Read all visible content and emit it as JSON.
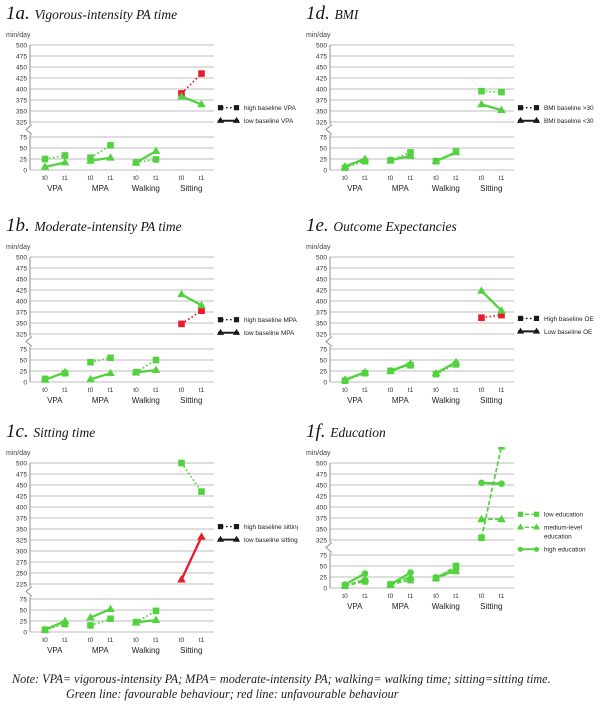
{
  "figure": {
    "note": {
      "line1": "Note:  VPA= vigorous-intensity PA; MPA= moderate-intensity PA; walking= walking time; sitting=sitting time.",
      "line2": "Green line: favourable behaviour; red line: unfavourable behaviour"
    }
  },
  "colors": {
    "green": "#52d23e",
    "red": "#e81c2c",
    "black": "#1a1a1a",
    "grid": "#bcbcbc",
    "axis": "#8e8e8e",
    "text": "#333333"
  },
  "chart_data": [
    {
      "id": "1a",
      "label": "1a.",
      "title": "Vigorous-intensity PA time",
      "type": "line",
      "ylabel": "min/day",
      "axis_break": true,
      "upper_ticks": [
        500,
        475,
        450,
        425,
        400,
        375,
        350,
        325
      ],
      "lower_ticks": [
        75,
        50,
        25,
        0
      ],
      "groups": [
        "VPA",
        "MPA",
        "Walking",
        "Sitting"
      ],
      "x_ticks": [
        "t0",
        "t1"
      ],
      "legend_color": "black",
      "legend_anchor": 352,
      "series": [
        {
          "name": "high baseline VPA",
          "marker": "square",
          "line": "dotted",
          "values": [
            [
              25,
              33
            ],
            [
              28,
              56
            ],
            [
              17,
              24
            ],
            [
              390,
              435
            ]
          ],
          "segment_colors": [
            "green",
            "green",
            "green",
            "red"
          ]
        },
        {
          "name": "low baseline VPA",
          "marker": "triangle",
          "line": "solid",
          "values": [
            [
              7,
              17
            ],
            [
              21,
              28
            ],
            [
              17,
              43
            ],
            [
              383,
              365
            ]
          ],
          "segment_colors": [
            "green",
            "green",
            "green",
            "green"
          ]
        }
      ]
    },
    {
      "id": "1b",
      "label": "1b.",
      "title": "Moderate-intensity PA time",
      "type": "line",
      "ylabel": "min/day",
      "axis_break": true,
      "upper_ticks": [
        500,
        475,
        450,
        425,
        400,
        375,
        350,
        325
      ],
      "lower_ticks": [
        75,
        50,
        25,
        0
      ],
      "groups": [
        "VPA",
        "MPA",
        "Walking",
        "Sitting"
      ],
      "x_ticks": [
        "t0",
        "t1"
      ],
      "legend_color": "black",
      "legend_anchor": 352,
      "series": [
        {
          "name": "high baseline MPA",
          "marker": "square",
          "line": "dotted",
          "values": [
            [
              7,
              20
            ],
            [
              45,
              55
            ],
            [
              22,
              50
            ],
            [
              348,
              378
            ]
          ],
          "segment_colors": [
            "green",
            "green",
            "green",
            "red"
          ]
        },
        {
          "name": "low baseline MPA",
          "marker": "triangle",
          "line": "solid",
          "values": [
            [
              5,
              22
            ],
            [
              6,
              20
            ],
            [
              22,
              27
            ],
            [
              415,
              390
            ]
          ],
          "segment_colors": [
            "green",
            "green",
            "green",
            "green"
          ]
        }
      ]
    },
    {
      "id": "1c",
      "label": "1c.",
      "title": "Sitting time",
      "type": "line",
      "ylabel": "min/day",
      "axis_break": true,
      "upper_ticks": [
        500,
        475,
        450,
        425,
        400,
        375,
        350,
        325,
        300,
        275,
        250,
        225
      ],
      "lower_ticks": [
        75,
        50,
        25,
        0
      ],
      "groups": [
        "VPA",
        "MPA",
        "Walking",
        "Sitting"
      ],
      "x_ticks": [
        "t0",
        "t1"
      ],
      "legend_color": "black",
      "legend_anchor": 350,
      "series": [
        {
          "name": "high baseline sitting",
          "marker": "square",
          "line": "dotted",
          "values": [
            [
              5,
              18
            ],
            [
              15,
              30
            ],
            [
              22,
              48
            ],
            [
              500,
              435
            ]
          ],
          "segment_colors": [
            "green",
            "green",
            "green",
            "green"
          ]
        },
        {
          "name": "low baseline sitting",
          "marker": "triangle",
          "line": "solid",
          "values": [
            [
              5,
              25
            ],
            [
              33,
              52
            ],
            [
              22,
              27
            ],
            [
              235,
              332
            ]
          ],
          "segment_colors": [
            "green",
            "green",
            "green",
            "red"
          ]
        }
      ]
    },
    {
      "id": "1d",
      "label": "1d.",
      "title": "BMI",
      "type": "line",
      "ylabel": "min/day",
      "axis_break": true,
      "upper_ticks": [
        500,
        475,
        450,
        425,
        400,
        375,
        350,
        325
      ],
      "lower_ticks": [
        75,
        50,
        25,
        0
      ],
      "groups": [
        "VPA",
        "MPA",
        "Walking",
        "Sitting"
      ],
      "x_ticks": [
        "t0",
        "t1"
      ],
      "legend_color": "black",
      "legend_anchor": 352,
      "series": [
        {
          "name": "BMI baseline >30",
          "marker": "square",
          "line": "dotted",
          "values": [
            [
              5,
              20
            ],
            [
              22,
              40
            ],
            [
              20,
              42
            ],
            [
              395,
              393
            ]
          ],
          "segment_colors": [
            "green",
            "green",
            "green",
            "green"
          ]
        },
        {
          "name": "BMI baseline <30",
          "marker": "triangle",
          "line": "solid",
          "values": [
            [
              8,
              25
            ],
            [
              22,
              32
            ],
            [
              20,
              40
            ],
            [
              365,
              352
            ]
          ],
          "segment_colors": [
            "green",
            "green",
            "green",
            "green"
          ]
        }
      ]
    },
    {
      "id": "1e",
      "label": "1e.",
      "title": "Outcome Expectancies",
      "type": "line",
      "ylabel": "min/day",
      "axis_break": true,
      "upper_ticks": [
        500,
        475,
        450,
        425,
        400,
        375,
        350,
        325
      ],
      "lower_ticks": [
        75,
        50,
        25,
        0
      ],
      "groups": [
        "VPA",
        "MPA",
        "Walking",
        "Sitting"
      ],
      "x_ticks": [
        "t0",
        "t1"
      ],
      "legend_color": "black",
      "legend_anchor": 355,
      "series": [
        {
          "name": "High baseline OE",
          "marker": "square",
          "line": "dotted",
          "values": [
            [
              3,
              20
            ],
            [
              25,
              38
            ],
            [
              18,
              40
            ],
            [
              362,
              368
            ]
          ],
          "segment_colors": [
            "green",
            "green",
            "green",
            "red"
          ]
        },
        {
          "name": "Low baseline OE",
          "marker": "triangle",
          "line": "solid",
          "values": [
            [
              5,
              22
            ],
            [
              25,
              42
            ],
            [
              20,
              45
            ],
            [
              423,
              378
            ]
          ],
          "segment_colors": [
            "green",
            "green",
            "green",
            "green"
          ]
        }
      ]
    },
    {
      "id": "1f",
      "label": "1f.",
      "title": "Education",
      "type": "line",
      "ylabel": "min/day",
      "axis_break": true,
      "upper_ticks": [
        500,
        475,
        450,
        425,
        400,
        375,
        350,
        325
      ],
      "lower_ticks": [
        75,
        50,
        25,
        0
      ],
      "groups": [
        "VPA",
        "MPA",
        "Walking",
        "Sitting"
      ],
      "x_ticks": [
        "t0",
        "t1"
      ],
      "legend_color": "green",
      "legend_anchor": 378,
      "series": [
        {
          "name": "low education",
          "marker": "square",
          "line": "dashed",
          "values": [
            [
              5,
              15
            ],
            [
              8,
              18
            ],
            [
              22,
              50
            ],
            [
              330,
              322
            ]
          ],
          "segment_colors": [
            "green",
            "green",
            "green",
            "green"
          ]
        },
        {
          "name": "medium-level\neducation",
          "marker": "triangle",
          "line": "dashed",
          "values": [
            [
              5,
              20
            ],
            [
              8,
              25
            ],
            [
              23,
              38
            ],
            [
              372,
              372
            ]
          ],
          "segment_colors": [
            "green",
            "green",
            "green",
            "green"
          ]
        },
        {
          "name": "high education",
          "marker": "circle",
          "line": "solid",
          "values": [
            [
              8,
              33
            ],
            [
              8,
              35
            ],
            [
              24,
              42
            ],
            [
              455,
              453
            ]
          ],
          "segment_colors": [
            "green",
            "green",
            "green",
            "green"
          ]
        }
      ]
    }
  ]
}
